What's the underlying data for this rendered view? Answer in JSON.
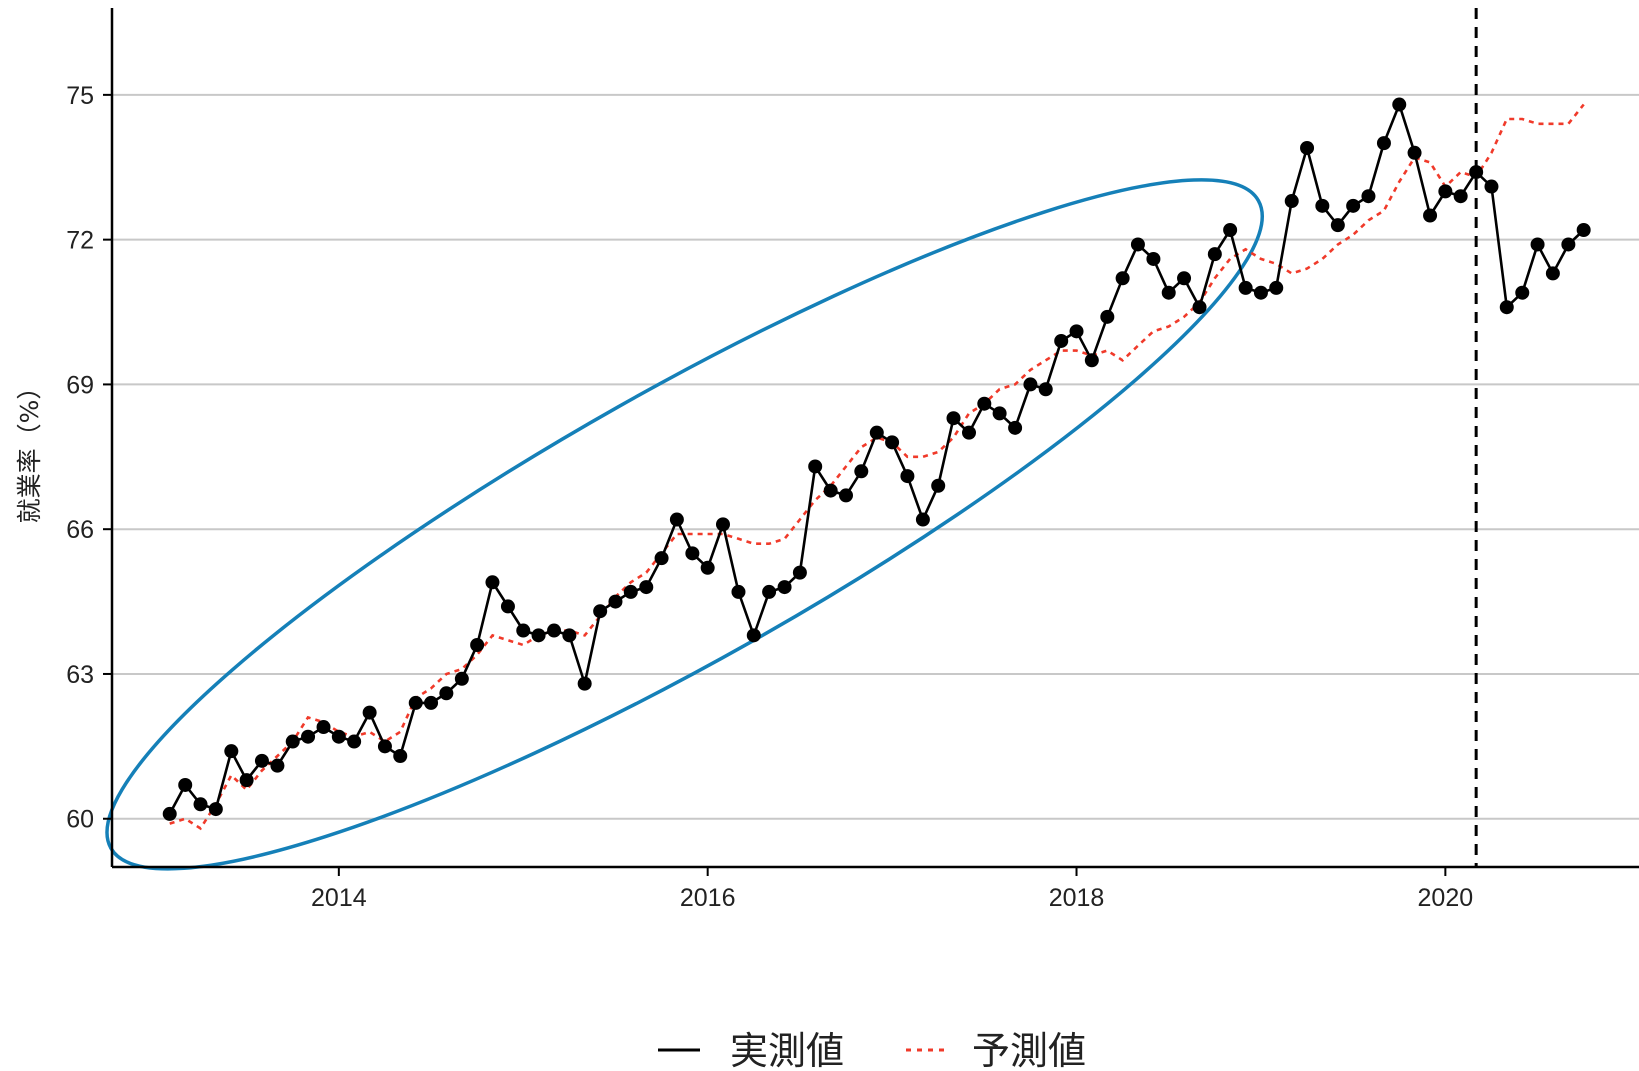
{
  "chart_data": {
    "type": "line",
    "ylabel": "就業率（%）",
    "xlabel": "",
    "xlim": [
      2012.77,
      2021.05
    ],
    "ylim": [
      59.0,
      76.8
    ],
    "x_ticks": [
      2014,
      2016,
      2018,
      2020
    ],
    "y_ticks": [
      60,
      63,
      66,
      69,
      72,
      75
    ],
    "grid": "horizontal",
    "legend_position": "bottom",
    "vline_x": 2020.167,
    "colors": {
      "actual": "#000000",
      "forecast": "#f03a2a",
      "ellipse": "#1580b8",
      "grid": "#c8c8c8"
    },
    "ellipse": {
      "x_range": [
        2013.0,
        2018.75
      ],
      "y_range": [
        59.9,
        72.3
      ]
    },
    "series": [
      {
        "name": "実測値",
        "style": "solid-with-points",
        "x": [
          2013.083,
          2013.167,
          2013.25,
          2013.333,
          2013.417,
          2013.5,
          2013.583,
          2013.667,
          2013.75,
          2013.833,
          2013.917,
          2014.0,
          2014.083,
          2014.167,
          2014.25,
          2014.333,
          2014.417,
          2014.5,
          2014.583,
          2014.667,
          2014.75,
          2014.833,
          2014.917,
          2015.0,
          2015.083,
          2015.167,
          2015.25,
          2015.333,
          2015.417,
          2015.5,
          2015.583,
          2015.667,
          2015.75,
          2015.833,
          2015.917,
          2016.0,
          2016.083,
          2016.167,
          2016.25,
          2016.333,
          2016.417,
          2016.5,
          2016.583,
          2016.667,
          2016.75,
          2016.833,
          2016.917,
          2017.0,
          2017.083,
          2017.167,
          2017.25,
          2017.333,
          2017.417,
          2017.5,
          2017.583,
          2017.667,
          2017.75,
          2017.833,
          2017.917,
          2018.0,
          2018.083,
          2018.167,
          2018.25,
          2018.333,
          2018.417,
          2018.5,
          2018.583,
          2018.667,
          2018.75,
          2018.833,
          2018.917,
          2019.0,
          2019.083,
          2019.167,
          2019.25,
          2019.333,
          2019.417,
          2019.5,
          2019.583,
          2019.667,
          2019.75,
          2019.833,
          2019.917,
          2020.0,
          2020.083,
          2020.167,
          2020.25,
          2020.333,
          2020.417,
          2020.5,
          2020.583,
          2020.667,
          2020.75
        ],
        "values": [
          60.1,
          60.7,
          60.3,
          60.2,
          61.4,
          60.8,
          61.2,
          61.1,
          61.6,
          61.7,
          61.9,
          61.7,
          61.6,
          62.2,
          61.5,
          61.3,
          62.4,
          62.4,
          62.6,
          62.9,
          63.6,
          64.9,
          64.4,
          63.9,
          63.8,
          63.9,
          63.8,
          62.8,
          64.3,
          64.5,
          64.7,
          64.8,
          65.4,
          66.2,
          65.5,
          65.2,
          66.1,
          64.7,
          63.8,
          64.7,
          64.8,
          65.1,
          67.3,
          66.8,
          66.7,
          67.2,
          68.0,
          67.8,
          67.1,
          66.2,
          66.9,
          68.3,
          68.0,
          68.6,
          68.4,
          68.1,
          69.0,
          68.9,
          69.9,
          70.1,
          69.5,
          70.4,
          71.2,
          71.9,
          71.6,
          70.9,
          71.2,
          70.6,
          71.7,
          72.2,
          71.0,
          70.9,
          71.0,
          72.8,
          73.9,
          72.7,
          72.3,
          72.7,
          72.9,
          74.0,
          74.8,
          73.8,
          72.5,
          73.0,
          72.9,
          73.4,
          73.1,
          70.6,
          70.9,
          71.9,
          71.3,
          71.9,
          72.2
        ]
      },
      {
        "name": "予測値",
        "style": "dotted",
        "x": [
          2013.083,
          2013.167,
          2013.25,
          2013.333,
          2013.417,
          2013.5,
          2013.583,
          2013.667,
          2013.75,
          2013.833,
          2013.917,
          2014.0,
          2014.083,
          2014.167,
          2014.25,
          2014.333,
          2014.417,
          2014.5,
          2014.583,
          2014.667,
          2014.75,
          2014.833,
          2014.917,
          2015.0,
          2015.083,
          2015.167,
          2015.25,
          2015.333,
          2015.417,
          2015.5,
          2015.583,
          2015.667,
          2015.75,
          2015.833,
          2015.917,
          2016.0,
          2016.083,
          2016.167,
          2016.25,
          2016.333,
          2016.417,
          2016.5,
          2016.583,
          2016.667,
          2016.75,
          2016.833,
          2016.917,
          2017.0,
          2017.083,
          2017.167,
          2017.25,
          2017.333,
          2017.417,
          2017.5,
          2017.583,
          2017.667,
          2017.75,
          2017.833,
          2017.917,
          2018.0,
          2018.083,
          2018.167,
          2018.25,
          2018.333,
          2018.417,
          2018.5,
          2018.583,
          2018.667,
          2018.75,
          2018.833,
          2018.917,
          2019.0,
          2019.083,
          2019.167,
          2019.25,
          2019.333,
          2019.417,
          2019.5,
          2019.583,
          2019.667,
          2019.75,
          2019.833,
          2019.917,
          2020.0,
          2020.083,
          2020.167,
          2020.25,
          2020.333,
          2020.417,
          2020.5,
          2020.583,
          2020.667,
          2020.75
        ],
        "values": [
          59.9,
          60.0,
          59.8,
          60.3,
          60.9,
          60.6,
          61.0,
          61.3,
          61.6,
          62.1,
          62.0,
          61.8,
          61.7,
          61.8,
          61.6,
          61.8,
          62.5,
          62.7,
          63.0,
          63.1,
          63.4,
          63.8,
          63.7,
          63.6,
          63.8,
          63.9,
          63.9,
          63.8,
          64.2,
          64.6,
          64.9,
          65.1,
          65.5,
          65.9,
          65.9,
          65.9,
          65.9,
          65.8,
          65.7,
          65.7,
          65.8,
          66.2,
          66.6,
          66.9,
          67.3,
          67.7,
          67.9,
          67.8,
          67.5,
          67.5,
          67.6,
          67.9,
          68.4,
          68.6,
          68.9,
          69.0,
          69.3,
          69.5,
          69.7,
          69.7,
          69.6,
          69.7,
          69.5,
          69.8,
          70.1,
          70.2,
          70.4,
          70.7,
          71.2,
          71.6,
          71.8,
          71.6,
          71.5,
          71.3,
          71.4,
          71.6,
          71.9,
          72.1,
          72.4,
          72.6,
          73.2,
          73.7,
          73.6,
          73.1,
          73.4,
          73.3,
          73.8,
          74.5,
          74.5,
          74.4,
          74.4,
          74.4,
          74.8
        ]
      }
    ]
  }
}
